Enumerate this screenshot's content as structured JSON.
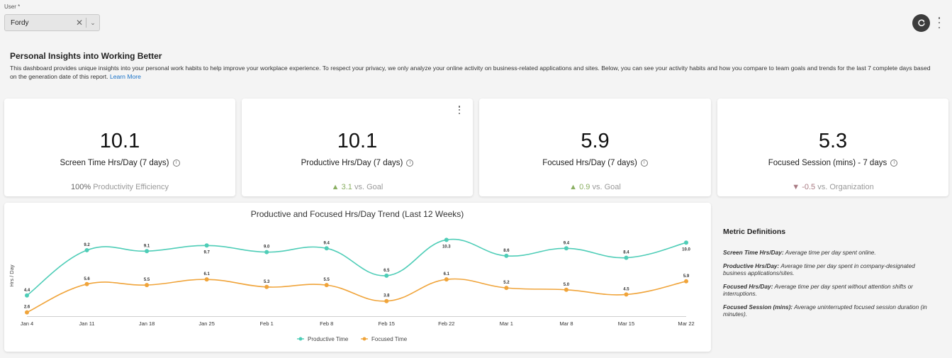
{
  "user_filter": {
    "label": "User *",
    "value": "Fordy",
    "clear_icon": "close-icon",
    "dropdown_icon": "chevron-down-icon"
  },
  "toolbar": {
    "refresh_icon": "refresh-icon",
    "more_icon": "more-vertical-icon"
  },
  "header": {
    "title": "Personal Insights into Working Better",
    "description": "This dashboard provides unique insights into your personal work habits to help improve your workplace experience. To respect your privacy, we only analyze your online activity on business-related applications and sites. Below, you can see your activity habits and how you compare to team goals and trends for the last 7 complete days based on the generation date of this report.",
    "learn_more": "Learn More"
  },
  "cards": [
    {
      "value": "10.1",
      "label": "Screen Time Hrs/Day (7 days)",
      "sub_value": "100%",
      "sub_text": "Productivity Efficiency",
      "trend": "none"
    },
    {
      "value": "10.1",
      "label": "Productive Hrs/Day (7 days)",
      "sub_value": "3.1",
      "sub_text": "vs. Goal",
      "trend": "up"
    },
    {
      "value": "5.9",
      "label": "Focused Hrs/Day (7 days)",
      "sub_value": "0.9",
      "sub_text": "vs. Goal",
      "trend": "up"
    },
    {
      "value": "5.3",
      "label": "Focused Session (mins) - 7 days",
      "sub_value": "-0.5",
      "sub_text": "vs. Organization",
      "trend": "down"
    }
  ],
  "trend_colors": {
    "up": "#8aaf62",
    "down": "#a87a82"
  },
  "chart_data": {
    "type": "line",
    "title": "Productive and Focused Hrs/Day Trend (Last 12 Weeks)",
    "ylabel": "Hrs / Day",
    "xlabel": "",
    "categories": [
      "Jan 4",
      "Jan 11",
      "Jan 18",
      "Jan 25",
      "Feb 1",
      "Feb 8",
      "Feb 15",
      "Feb 22",
      "Mar 1",
      "Mar 8",
      "Mar 15",
      "Mar 22"
    ],
    "ylim": [
      2.2,
      10.7
    ],
    "grid": false,
    "legend": "bottom",
    "series": [
      {
        "name": "Productive Time",
        "color": "#4ecdb7",
        "values": [
          4.4,
          9.2,
          9.1,
          9.7,
          9.0,
          9.4,
          6.5,
          10.3,
          8.6,
          9.4,
          8.4,
          10.0
        ]
      },
      {
        "name": "Focused Time",
        "color": "#f0a43a",
        "values": [
          2.6,
          5.6,
          5.5,
          6.1,
          5.3,
          5.5,
          3.8,
          6.1,
          5.2,
          5.0,
          4.5,
          5.9
        ]
      }
    ]
  },
  "definitions": {
    "title": "Metric Definitions",
    "items": [
      {
        "term": "Screen Time Hrs/Day:",
        "text": "Average time per day spent online."
      },
      {
        "term": "Productive Hrs/Day:",
        "text": "Average time per day spent in company-designated business applications/sites."
      },
      {
        "term": "Focused Hrs/Day:",
        "text": "Average time per day spent without attention shifts or interruptions."
      },
      {
        "term": "Focused Session (mins):",
        "text": "Average uninterrupted focused session duration (in minutes)."
      }
    ]
  }
}
